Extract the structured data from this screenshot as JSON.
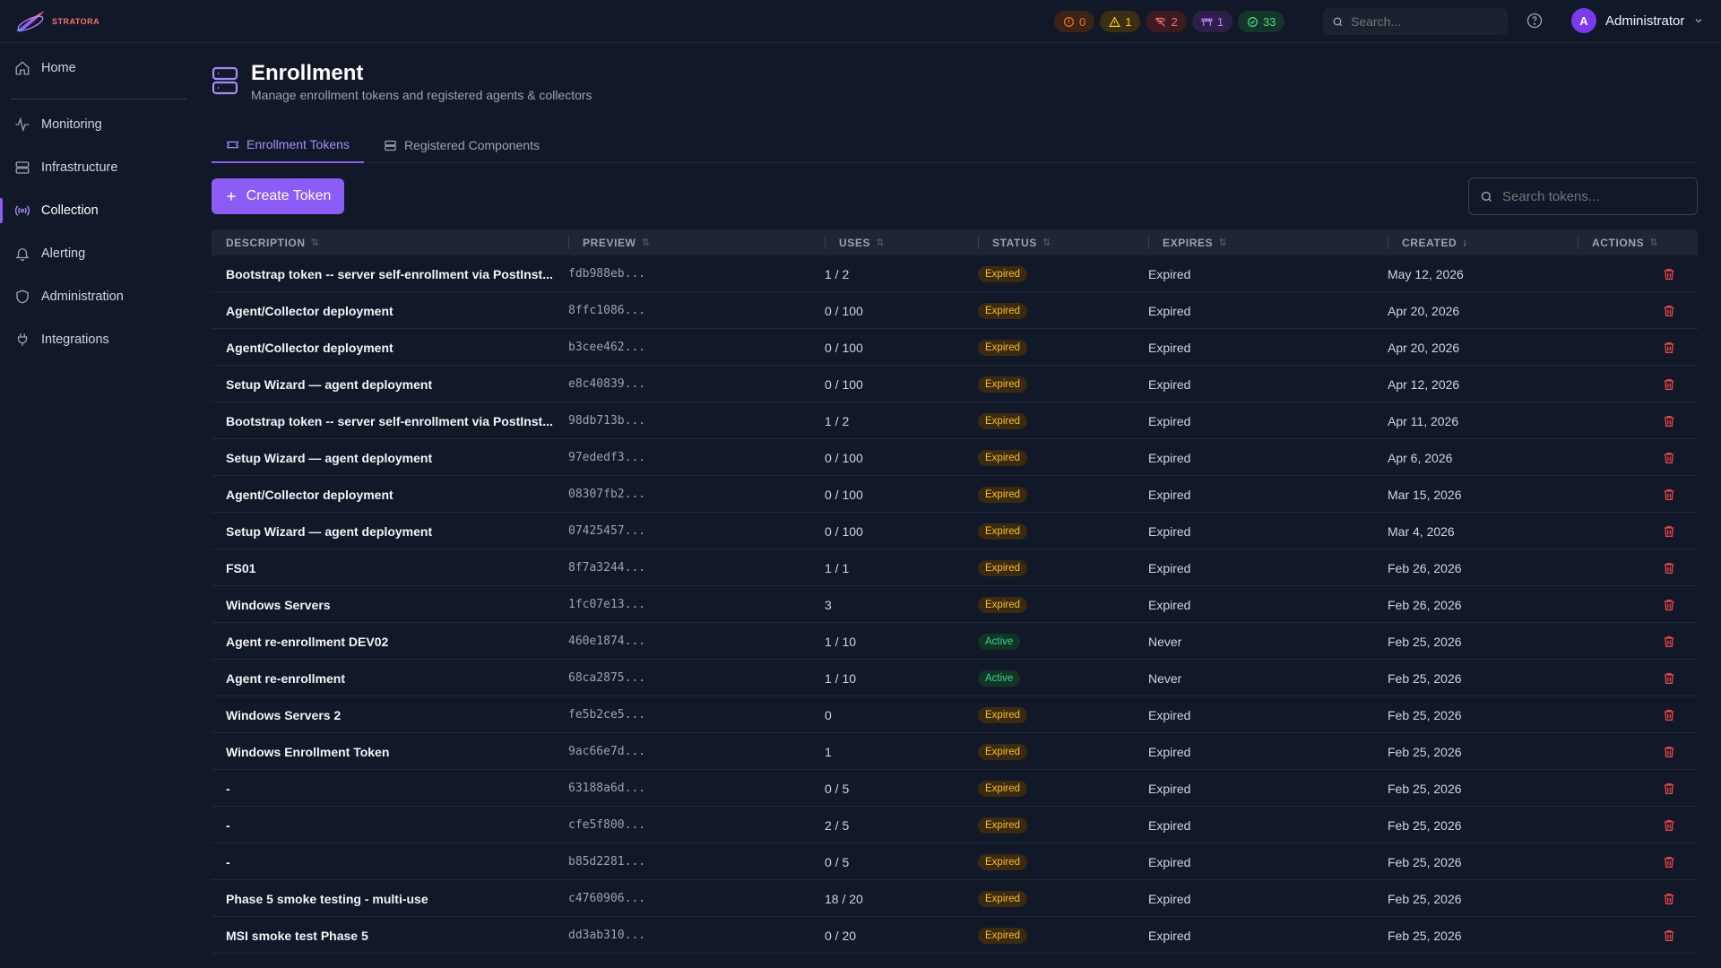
{
  "brand": {
    "name": "STRATORA"
  },
  "header": {
    "pills": [
      {
        "icon": "alert-circle-icon",
        "count": "0",
        "bg": "#3b2416",
        "color": "#f97316"
      },
      {
        "icon": "warning-triangle-icon",
        "count": "1",
        "bg": "#3a2e13",
        "color": "#facc15"
      },
      {
        "icon": "signal-off-icon",
        "count": "2",
        "bg": "#3d1a1f",
        "color": "#f87171"
      },
      {
        "icon": "maintenance-icon",
        "count": "1",
        "bg": "#2e1f4a",
        "color": "#c084fc"
      },
      {
        "icon": "check-circle-icon",
        "count": "33",
        "bg": "#14352a",
        "color": "#4ade80"
      }
    ],
    "search_placeholder": "Search...",
    "user": {
      "initial": "A",
      "name": "Administrator"
    }
  },
  "sidebar": {
    "items": [
      {
        "label": "Home",
        "icon": "home-icon",
        "active": false
      },
      {
        "label": "Monitoring",
        "icon": "activity-icon",
        "active": false
      },
      {
        "label": "Infrastructure",
        "icon": "server-icon",
        "active": false
      },
      {
        "label": "Collection",
        "icon": "broadcast-icon",
        "active": true
      },
      {
        "label": "Alerting",
        "icon": "bell-icon",
        "active": false
      },
      {
        "label": "Administration",
        "icon": "shield-icon",
        "active": false
      },
      {
        "label": "Integrations",
        "icon": "plug-icon",
        "active": false
      }
    ]
  },
  "page": {
    "title": "Enrollment",
    "subtitle": "Manage enrollment tokens and registered agents & collectors"
  },
  "tabs": [
    {
      "label": "Enrollment Tokens",
      "active": true
    },
    {
      "label": "Registered Components",
      "active": false
    }
  ],
  "toolbar": {
    "create_label": "Create Token",
    "search_placeholder": "Search tokens..."
  },
  "table": {
    "columns": [
      "DESCRIPTION",
      "PREVIEW",
      "USES",
      "STATUS",
      "EXPIRES",
      "CREATED",
      "ACTIONS"
    ],
    "rows": [
      {
        "description": "Bootstrap token -- server self-enrollment via PostInst...",
        "preview": "fdb988eb...",
        "uses": "1 / 2",
        "status": "Expired",
        "expires": "Expired",
        "created": "May 12, 2026"
      },
      {
        "description": "Agent/Collector deployment",
        "preview": "8ffc1086...",
        "uses": "0 / 100",
        "status": "Expired",
        "expires": "Expired",
        "created": "Apr 20, 2026"
      },
      {
        "description": "Agent/Collector deployment",
        "preview": "b3cee462...",
        "uses": "0 / 100",
        "status": "Expired",
        "expires": "Expired",
        "created": "Apr 20, 2026"
      },
      {
        "description": "Setup Wizard — agent deployment",
        "preview": "e8c40839...",
        "uses": "0 / 100",
        "status": "Expired",
        "expires": "Expired",
        "created": "Apr 12, 2026"
      },
      {
        "description": "Bootstrap token -- server self-enrollment via PostInst...",
        "preview": "98db713b...",
        "uses": "1 / 2",
        "status": "Expired",
        "expires": "Expired",
        "created": "Apr 11, 2026"
      },
      {
        "description": "Setup Wizard — agent deployment",
        "preview": "97ededf3...",
        "uses": "0 / 100",
        "status": "Expired",
        "expires": "Expired",
        "created": "Apr 6, 2026"
      },
      {
        "description": "Agent/Collector deployment",
        "preview": "08307fb2...",
        "uses": "0 / 100",
        "status": "Expired",
        "expires": "Expired",
        "created": "Mar 15, 2026"
      },
      {
        "description": "Setup Wizard — agent deployment",
        "preview": "07425457...",
        "uses": "0 / 100",
        "status": "Expired",
        "expires": "Expired",
        "created": "Mar 4, 2026"
      },
      {
        "description": "FS01",
        "preview": "8f7a3244...",
        "uses": "1 / 1",
        "status": "Expired",
        "expires": "Expired",
        "created": "Feb 26, 2026"
      },
      {
        "description": "Windows Servers",
        "preview": "1fc07e13...",
        "uses": "3",
        "status": "Expired",
        "expires": "Expired",
        "created": "Feb 26, 2026"
      },
      {
        "description": "Agent re-enrollment DEV02",
        "preview": "460e1874...",
        "uses": "1 / 10",
        "status": "Active",
        "expires": "Never",
        "created": "Feb 25, 2026"
      },
      {
        "description": "Agent re-enrollment",
        "preview": "68ca2875...",
        "uses": "1 / 10",
        "status": "Active",
        "expires": "Never",
        "created": "Feb 25, 2026"
      },
      {
        "description": "Windows Servers 2",
        "preview": "fe5b2ce5...",
        "uses": "0",
        "status": "Expired",
        "expires": "Expired",
        "created": "Feb 25, 2026"
      },
      {
        "description": "Windows Enrollment Token",
        "preview": "9ac66e7d...",
        "uses": "1",
        "status": "Expired",
        "expires": "Expired",
        "created": "Feb 25, 2026"
      },
      {
        "description": "-",
        "preview": "63188a6d...",
        "uses": "0 / 5",
        "status": "Expired",
        "expires": "Expired",
        "created": "Feb 25, 2026"
      },
      {
        "description": "-",
        "preview": "cfe5f800...",
        "uses": "2 / 5",
        "status": "Expired",
        "expires": "Expired",
        "created": "Feb 25, 2026"
      },
      {
        "description": "-",
        "preview": "b85d2281...",
        "uses": "0 / 5",
        "status": "Expired",
        "expires": "Expired",
        "created": "Feb 25, 2026"
      },
      {
        "description": "Phase 5 smoke testing - multi-use",
        "preview": "c4760906...",
        "uses": "18 / 20",
        "status": "Expired",
        "expires": "Expired",
        "created": "Feb 25, 2026"
      },
      {
        "description": "MSI smoke test Phase 5",
        "preview": "dd3ab310...",
        "uses": "0 / 20",
        "status": "Expired",
        "expires": "Expired",
        "created": "Feb 25, 2026"
      }
    ]
  },
  "colors": {
    "accent": "#8b5cf6",
    "delete": "#ef4444",
    "expired_text": "#fbbf24",
    "active_text": "#34d399"
  }
}
